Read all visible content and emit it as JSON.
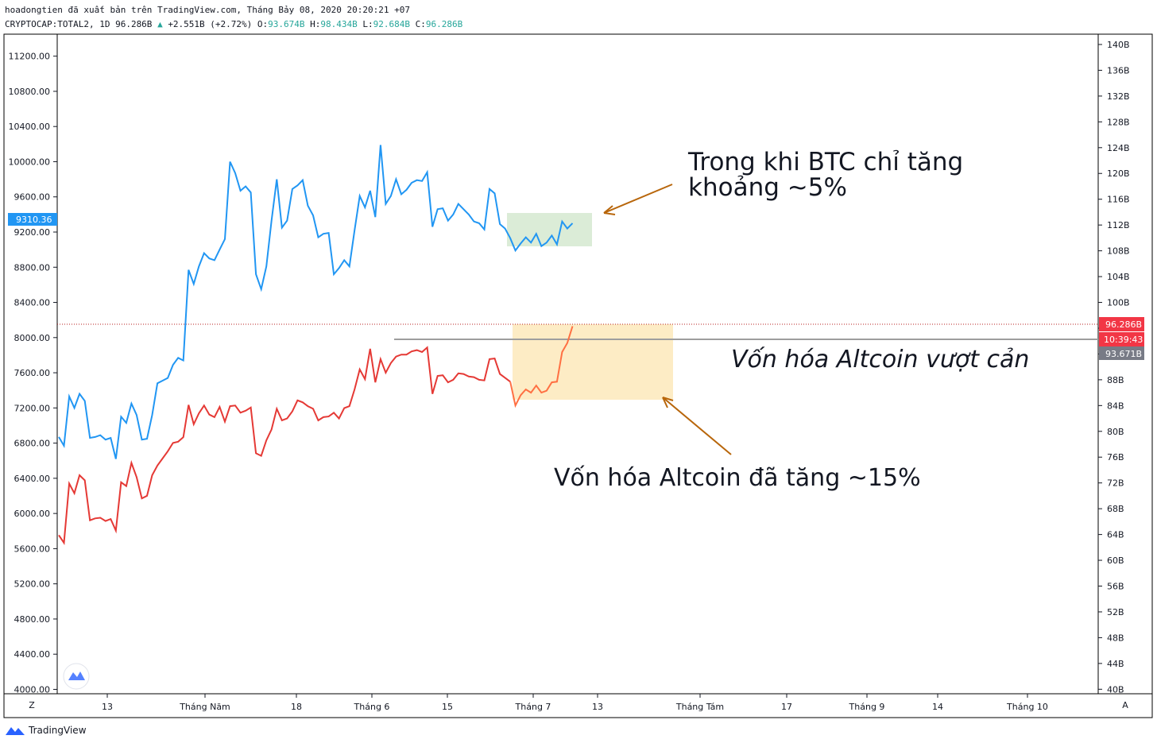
{
  "header": {
    "line1": "hoadongtien đã xuất bản trên TradingView.com, Tháng Bảy 08, 2020 20:20:21 +07",
    "symbol": "CRYPTOCAP:TOTAL2, 1D 96.286B",
    "change": "+2.551B (+2.72%)",
    "o_label": "O:",
    "o_val": "93.674B",
    "h_label": "H:",
    "h_val": "98.434B",
    "l_label": "L:",
    "l_val": "92.684B",
    "c_label": "C:",
    "c_val": "96.286B"
  },
  "footer": {
    "brand": "TradingView",
    "zoom_left": "Z",
    "zoom_right": "A"
  },
  "colors": {
    "btc": "#2196f3",
    "altcoin": "#e53935",
    "altcoin_rise": "#ff7043",
    "green_box": "#d7ead3",
    "orange_box": "#fdebc2",
    "arrow": "#b8660b",
    "price_tag": "#f23645",
    "grey_tag": "#787b86"
  },
  "chart_data": {
    "type": "line",
    "left_axis": {
      "ticks": [
        "11200.00",
        "10800.00",
        "10400.00",
        "10000.00",
        "9600.00",
        "9200.00",
        "8800.00",
        "8400.00",
        "8000.00",
        "7600.00",
        "7200.00",
        "6800.00",
        "6400.00",
        "6000.00",
        "5600.00",
        "5200.00",
        "4800.00",
        "4400.00",
        "4000.00"
      ],
      "ylim": [
        3950,
        11450
      ],
      "last_label": "9310.36"
    },
    "right_axis": {
      "ticks": [
        "140B",
        "136B",
        "132B",
        "128B",
        "124B",
        "120B",
        "116B",
        "112B",
        "108B",
        "104B",
        "100B",
        "96B",
        "92B",
        "88B",
        "84B",
        "80B",
        "76B",
        "72B",
        "68B",
        "64B",
        "60B",
        "56B",
        "52B",
        "48B",
        "44B",
        "40B"
      ],
      "ylim": [
        39.3,
        141.6
      ],
      "price_label": "96.286B",
      "countdown_label": "10:39:43",
      "level_label": "93.671B"
    },
    "x_ticks": [
      "13",
      "Tháng Năm",
      "18",
      "Tháng 6",
      "15",
      "Tháng 7",
      "13",
      "Tháng Tám",
      "17",
      "Tháng 9",
      "14",
      "Tháng 10"
    ],
    "series": [
      {
        "name": "BTC",
        "axis": "left",
        "values": [
          6870,
          6770,
          7330,
          7200,
          7360,
          7280,
          6860,
          6870,
          6890,
          6840,
          6860,
          6620,
          7100,
          7030,
          7250,
          7120,
          6840,
          6850,
          7120,
          7480,
          7510,
          7540,
          7690,
          7770,
          7740,
          8770,
          8610,
          8810,
          8960,
          8900,
          8880,
          9000,
          9120,
          10000,
          9870,
          9670,
          9720,
          9650,
          8720,
          8550,
          8810,
          9330,
          9800,
          9250,
          9330,
          9690,
          9730,
          9790,
          9500,
          9390,
          9140,
          9180,
          9190,
          8720,
          8790,
          8880,
          8810,
          9220,
          9610,
          9480,
          9670,
          9370,
          10190,
          9520,
          9610,
          9800,
          9630,
          9680,
          9760,
          9790,
          9780,
          9880,
          9260,
          9460,
          9470,
          9330,
          9400,
          9520,
          9460,
          9400,
          9320,
          9300,
          9230,
          9690,
          9640,
          9290,
          9240,
          9130,
          8990,
          9070,
          9140,
          9080,
          9180,
          9040,
          9080,
          9160,
          9060,
          9320,
          9240,
          9300
        ]
      },
      {
        "name": "TOTAL2",
        "axis": "right",
        "values": [
          63.9,
          62.7,
          71.9,
          70.4,
          73.2,
          72.4,
          66.2,
          66.5,
          66.6,
          66.1,
          66.4,
          64.6,
          72.1,
          71.5,
          75.1,
          72.9,
          69.6,
          70.0,
          73.2,
          74.7,
          75.8,
          76.9,
          78.2,
          78.4,
          79.1,
          84.1,
          81.1,
          82.8,
          84.0,
          82.6,
          82.2,
          83.8,
          81.5,
          83.9,
          84.0,
          82.9,
          83.2,
          83.7,
          76.6,
          76.2,
          78.6,
          80.3,
          83.5,
          81.7,
          82.0,
          83.1,
          84.8,
          84.5,
          83.9,
          83.5,
          81.7,
          82.2,
          82.3,
          82.9,
          82.0,
          83.6,
          83.9,
          86.5,
          89.6,
          88.1,
          92.8,
          87.6,
          91.2,
          89.1,
          90.6,
          91.6,
          91.9,
          91.9,
          92.4,
          92.6,
          92.3,
          93.0,
          85.8,
          88.6,
          88.7,
          87.6,
          88.0,
          89.0,
          88.9,
          88.5,
          88.4,
          88.0,
          87.9,
          91.2,
          91.3,
          88.9,
          88.3,
          87.7,
          84.0,
          85.6,
          86.5,
          86.0,
          87.1,
          86.0,
          86.3,
          87.6,
          87.7,
          92.3,
          93.7,
          96.3
        ]
      }
    ],
    "annotations": [
      "Trong khi BTC chỉ tăng",
      "khoảng ~5%",
      "Vốn hóa Altcoin vượt cản",
      "Vốn hóa Altcoin đã tăng ~15%"
    ]
  }
}
